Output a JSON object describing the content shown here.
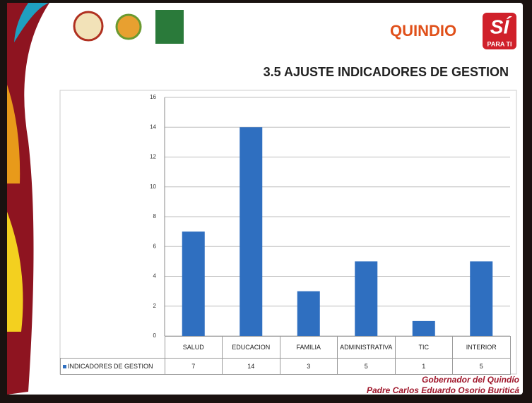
{
  "logo": {
    "name": "QUINDIO",
    "mark": "SÍ",
    "tagline": "PARA TI"
  },
  "chart_data": {
    "type": "bar",
    "title": "3.5 AJUSTE INDICADORES DE GESTION",
    "categories": [
      "SALUD",
      "EDUCACION",
      "FAMILIA",
      "ADMINISTRATIVA",
      "TIC",
      "INTERIOR"
    ],
    "series": [
      {
        "name": "INDICADORES DE GESTION",
        "color": "#2f6fc0",
        "values": [
          7,
          14,
          3,
          5,
          1,
          5
        ]
      }
    ],
    "ylim": [
      0,
      16
    ],
    "yticks": [
      0,
      2,
      4,
      6,
      8,
      10,
      12,
      14,
      16
    ],
    "grid": true,
    "data_table": true
  },
  "footer": {
    "line1": "Gobernador del Quindío",
    "line2": "Padre Carlos Eduardo Osorio Buriticá"
  }
}
